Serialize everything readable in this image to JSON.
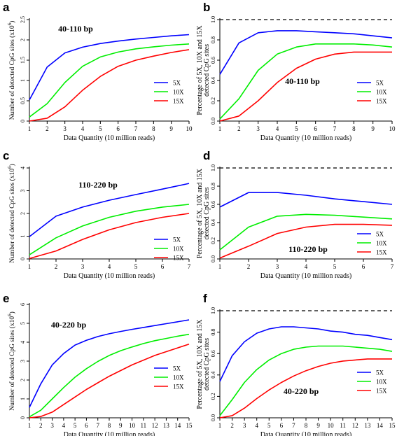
{
  "colors": {
    "5X": "#0000ff",
    "10X": "#00ee00",
    "15X": "#ff0000",
    "ref": "#000000"
  },
  "chart_data": [
    {
      "panel": "a",
      "type": "line",
      "title": "40-110 bp",
      "xlabel": "Data Quantity (10 million reads)",
      "ylabel": "Number of detected CpG sites (x10^6)",
      "ylabel_plain": "Number of detected CpG sites (x10",
      "ylabel_exp": "6",
      "ylabel_close": ")",
      "xlim": [
        1,
        10
      ],
      "ylim": [
        0,
        2.5
      ],
      "x_ticks": [
        1,
        2,
        3,
        4,
        5,
        6,
        7,
        8,
        9,
        10
      ],
      "y_ticks": [
        0,
        0.5,
        1,
        1.5,
        2,
        2.5
      ],
      "y_tick_labels": [
        "0",
        "0.5",
        "1",
        "1.5",
        "2",
        "2.5"
      ],
      "legend": [
        "5X",
        "10X",
        "15X"
      ],
      "legend_position": "right",
      "x": [
        1,
        2,
        3,
        4,
        5,
        6,
        7,
        8,
        9,
        10
      ],
      "series": [
        {
          "name": "5X",
          "values": [
            0.52,
            1.33,
            1.68,
            1.82,
            1.91,
            1.97,
            2.02,
            2.06,
            2.1,
            2.13
          ]
        },
        {
          "name": "10X",
          "values": [
            0.1,
            0.43,
            0.95,
            1.35,
            1.58,
            1.7,
            1.78,
            1.83,
            1.87,
            1.9
          ]
        },
        {
          "name": "15X",
          "values": [
            0.0,
            0.07,
            0.35,
            0.76,
            1.1,
            1.35,
            1.5,
            1.6,
            1.69,
            1.76
          ]
        }
      ]
    },
    {
      "panel": "b",
      "type": "line",
      "title": "40-110 bp",
      "xlabel": "Data Quantity (10 million reads)",
      "ylabel": "Percentage of 5X, 10X and 15X detected CpG sites",
      "ylabel_lines": [
        "Percentage of 5X, 10X and 15X",
        "detected CpG sites"
      ],
      "xlim": [
        1,
        10
      ],
      "ylim": [
        0,
        1.0
      ],
      "x_ticks": [
        1,
        2,
        3,
        4,
        5,
        6,
        7,
        8,
        9,
        10
      ],
      "y_ticks": [
        0,
        0.2,
        0.4,
        0.6,
        0.8,
        1.0
      ],
      "y_tick_labels": [
        "0.0",
        "0.2",
        "0.4",
        "0.6",
        "0.8",
        "1.0"
      ],
      "reference_line": 1.0,
      "legend": [
        "5X",
        "10X",
        "15X"
      ],
      "legend_position": "right",
      "x": [
        1,
        2,
        3,
        4,
        5,
        6,
        7,
        8,
        9,
        10
      ],
      "series": [
        {
          "name": "5X",
          "values": [
            0.46,
            0.77,
            0.87,
            0.89,
            0.89,
            0.88,
            0.87,
            0.86,
            0.84,
            0.82
          ]
        },
        {
          "name": "10X",
          "values": [
            0.02,
            0.22,
            0.5,
            0.66,
            0.73,
            0.76,
            0.76,
            0.76,
            0.75,
            0.73
          ]
        },
        {
          "name": "15X",
          "values": [
            0.0,
            0.05,
            0.2,
            0.38,
            0.52,
            0.61,
            0.66,
            0.68,
            0.68,
            0.68
          ]
        }
      ]
    },
    {
      "panel": "c",
      "type": "line",
      "title": "110-220 bp",
      "xlabel": "Data Quantity (10 million reads)",
      "ylabel": "Number of detected CpG sites (x10^6)",
      "ylabel_plain": "Number of detected CpG sites (x10",
      "ylabel_exp": "6",
      "ylabel_close": ")",
      "xlim": [
        1,
        7
      ],
      "ylim": [
        0,
        4
      ],
      "x_ticks": [
        1,
        2,
        3,
        4,
        5,
        6,
        7
      ],
      "y_ticks": [
        0,
        1,
        2,
        3,
        4
      ],
      "y_tick_labels": [
        "0",
        "1",
        "2",
        "3",
        "4"
      ],
      "legend": [
        "5X",
        "10X",
        "15X"
      ],
      "legend_position": "right",
      "x": [
        1,
        2,
        3,
        4,
        5,
        6,
        7
      ],
      "series": [
        {
          "name": "5X",
          "values": [
            0.98,
            1.88,
            2.28,
            2.58,
            2.83,
            3.07,
            3.32
          ]
        },
        {
          "name": "10X",
          "values": [
            0.18,
            0.93,
            1.45,
            1.83,
            2.1,
            2.28,
            2.4
          ]
        },
        {
          "name": "15X",
          "values": [
            0.02,
            0.35,
            0.86,
            1.28,
            1.6,
            1.83,
            2.0
          ]
        }
      ]
    },
    {
      "panel": "d",
      "type": "line",
      "title": "110-220 bp",
      "xlabel": "Data Quantity (10 million reads)",
      "ylabel": "Percentage of 5X, 10X and 15X detected CpG sites",
      "ylabel_lines": [
        "Percentage of 5X, 10X and 15X",
        "detected CpG sites"
      ],
      "xlim": [
        1,
        7
      ],
      "ylim": [
        0,
        1.0
      ],
      "x_ticks": [
        1,
        2,
        3,
        4,
        5,
        6,
        7
      ],
      "y_ticks": [
        0,
        0.2,
        0.4,
        0.6,
        0.8,
        1.0
      ],
      "y_tick_labels": [
        "0.0",
        "0.2",
        "0.4",
        "0.6",
        "0.8",
        "1.0"
      ],
      "reference_line": 1.0,
      "legend": [
        "5X",
        "10X",
        "15X"
      ],
      "legend_position": "right",
      "x": [
        1,
        2,
        3,
        4,
        5,
        6,
        7
      ],
      "series": [
        {
          "name": "5X",
          "values": [
            0.57,
            0.73,
            0.73,
            0.7,
            0.66,
            0.63,
            0.6
          ]
        },
        {
          "name": "10X",
          "values": [
            0.1,
            0.35,
            0.47,
            0.49,
            0.48,
            0.46,
            0.44
          ]
        },
        {
          "name": "15X",
          "values": [
            0.01,
            0.14,
            0.28,
            0.35,
            0.38,
            0.38,
            0.37
          ]
        }
      ]
    },
    {
      "panel": "e",
      "type": "line",
      "title": "40-220 bp",
      "xlabel": "Data Quantity (10 million reads)",
      "ylabel": "Number of detected CpG sites (x10^6)",
      "ylabel_plain": "Number of detected CpG sites (x10",
      "ylabel_exp": "6",
      "ylabel_close": ")",
      "xlim": [
        1,
        15
      ],
      "ylim": [
        0,
        6
      ],
      "x_ticks": [
        1,
        2,
        3,
        4,
        5,
        6,
        7,
        8,
        9,
        10,
        11,
        12,
        13,
        14,
        15
      ],
      "y_ticks": [
        0,
        1,
        2,
        3,
        4,
        5,
        6
      ],
      "y_tick_labels": [
        "0",
        "1",
        "2",
        "3",
        "4",
        "5",
        "6"
      ],
      "legend": [
        "5X",
        "10X",
        "15X"
      ],
      "legend_position": "right",
      "x": [
        1,
        2,
        3,
        4,
        5,
        6,
        7,
        8,
        9,
        10,
        11,
        12,
        13,
        14,
        15
      ],
      "series": [
        {
          "name": "5X",
          "values": [
            0.55,
            1.8,
            2.8,
            3.4,
            3.85,
            4.1,
            4.3,
            4.45,
            4.57,
            4.68,
            4.78,
            4.88,
            4.98,
            5.08,
            5.18
          ]
        },
        {
          "name": "10X",
          "values": [
            0.05,
            0.4,
            1.0,
            1.6,
            2.15,
            2.6,
            2.98,
            3.3,
            3.55,
            3.75,
            3.93,
            4.08,
            4.2,
            4.32,
            4.42
          ]
        },
        {
          "name": "15X",
          "values": [
            0.0,
            0.07,
            0.3,
            0.7,
            1.1,
            1.5,
            1.85,
            2.2,
            2.5,
            2.8,
            3.05,
            3.3,
            3.5,
            3.7,
            3.9
          ]
        }
      ]
    },
    {
      "panel": "f",
      "type": "line",
      "title": "40-220 bp",
      "xlabel": "Data Quantity (10 million reads)",
      "ylabel": "Percentage of 5X, 10X and 15X detected CpG sites",
      "ylabel_lines": [
        "Percentage of 5X, 10X and 15X",
        "detected CpG sites"
      ],
      "xlim": [
        1,
        15
      ],
      "ylim": [
        0,
        1.0
      ],
      "x_ticks": [
        1,
        2,
        3,
        4,
        5,
        6,
        7,
        8,
        9,
        10,
        11,
        12,
        13,
        14,
        15
      ],
      "y_ticks": [
        0,
        0.2,
        0.4,
        0.6,
        0.8,
        1.0
      ],
      "y_tick_labels": [
        "0.0",
        "0.2",
        "0.4",
        "0.6",
        "0.8",
        "1.0"
      ],
      "reference_line": 1.0,
      "legend": [
        "5X",
        "10X",
        "15X"
      ],
      "legend_position": "right",
      "x": [
        1,
        2,
        3,
        4,
        5,
        6,
        7,
        8,
        9,
        10,
        11,
        12,
        13,
        14,
        15
      ],
      "series": [
        {
          "name": "5X",
          "values": [
            0.34,
            0.58,
            0.71,
            0.79,
            0.83,
            0.85,
            0.85,
            0.84,
            0.83,
            0.81,
            0.8,
            0.78,
            0.77,
            0.75,
            0.73
          ]
        },
        {
          "name": "10X",
          "values": [
            0.02,
            0.17,
            0.33,
            0.45,
            0.54,
            0.6,
            0.64,
            0.66,
            0.67,
            0.67,
            0.67,
            0.66,
            0.65,
            0.64,
            0.62
          ]
        },
        {
          "name": "15X",
          "values": [
            0.0,
            0.02,
            0.09,
            0.18,
            0.26,
            0.33,
            0.39,
            0.44,
            0.48,
            0.51,
            0.53,
            0.54,
            0.55,
            0.55,
            0.55
          ]
        }
      ]
    }
  ]
}
